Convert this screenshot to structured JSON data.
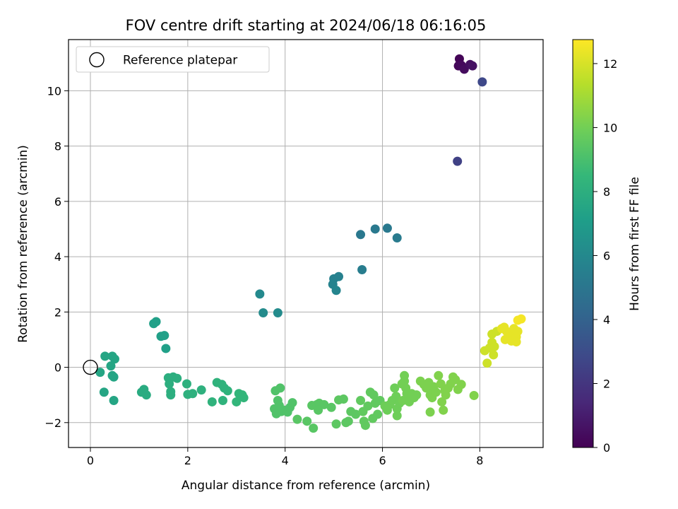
{
  "chart_data": {
    "type": "scatter",
    "title": "FOV centre drift starting at 2024/06/18 06:16:05",
    "xlabel": "Angular distance from reference (arcmin)",
    "ylabel": "Rotation from reference (arcmin)",
    "xlim": [
      -0.45,
      9.3
    ],
    "ylim": [
      -2.9,
      11.85
    ],
    "xticks": [
      0,
      2,
      4,
      6,
      8
    ],
    "yticks": [
      -2,
      0,
      2,
      4,
      6,
      8,
      10
    ],
    "grid": true,
    "legend": {
      "location": "top-left",
      "entries": [
        "Reference platepar"
      ]
    },
    "reference_point": {
      "x": 0,
      "y": 0
    },
    "colorbar": {
      "label": "Hours from first FF file",
      "colormap": "viridis",
      "range": [
        0,
        12.75
      ],
      "ticks": [
        0,
        2,
        4,
        6,
        8,
        10,
        12
      ]
    },
    "points": [
      {
        "x": 7.58,
        "y": 11.15,
        "c": 0.1
      },
      {
        "x": 7.56,
        "y": 10.9,
        "c": 0.2
      },
      {
        "x": 7.62,
        "y": 10.92,
        "c": 0.3
      },
      {
        "x": 7.68,
        "y": 10.78,
        "c": 0.4
      },
      {
        "x": 7.8,
        "y": 10.95,
        "c": 0.5
      },
      {
        "x": 7.85,
        "y": 10.9,
        "c": 0.6
      },
      {
        "x": 8.05,
        "y": 10.32,
        "c": 2.8
      },
      {
        "x": 7.54,
        "y": 7.45,
        "c": 2.5
      },
      {
        "x": 5.55,
        "y": 4.8,
        "c": 5.1
      },
      {
        "x": 5.85,
        "y": 5.0,
        "c": 5.2
      },
      {
        "x": 6.1,
        "y": 5.03,
        "c": 5.2
      },
      {
        "x": 6.3,
        "y": 4.68,
        "c": 5.3
      },
      {
        "x": 5.58,
        "y": 3.53,
        "c": 5.4
      },
      {
        "x": 5.0,
        "y": 3.2,
        "c": 5.6
      },
      {
        "x": 5.1,
        "y": 3.28,
        "c": 5.6
      },
      {
        "x": 4.98,
        "y": 3.0,
        "c": 5.7
      },
      {
        "x": 5.05,
        "y": 2.78,
        "c": 5.8
      },
      {
        "x": 3.48,
        "y": 2.65,
        "c": 6.0
      },
      {
        "x": 3.55,
        "y": 1.97,
        "c": 6.1
      },
      {
        "x": 3.85,
        "y": 1.97,
        "c": 6.1
      },
      {
        "x": 0.3,
        "y": 0.4,
        "c": 7.5
      },
      {
        "x": 0.45,
        "y": 0.4,
        "c": 7.5
      },
      {
        "x": 0.5,
        "y": 0.3,
        "c": 7.5
      },
      {
        "x": 0.42,
        "y": 0.05,
        "c": 7.5
      },
      {
        "x": 0.2,
        "y": -0.18,
        "c": 7.5
      },
      {
        "x": 0.48,
        "y": -0.35,
        "c": 7.5
      },
      {
        "x": 0.45,
        "y": -0.3,
        "c": 7.5
      },
      {
        "x": 0.28,
        "y": -0.9,
        "c": 7.5
      },
      {
        "x": 0.48,
        "y": -1.2,
        "c": 7.5
      },
      {
        "x": 1.3,
        "y": 1.58,
        "c": 7.2
      },
      {
        "x": 1.35,
        "y": 1.65,
        "c": 7.2
      },
      {
        "x": 1.45,
        "y": 1.12,
        "c": 7.2
      },
      {
        "x": 1.52,
        "y": 1.15,
        "c": 7.2
      },
      {
        "x": 1.55,
        "y": 0.68,
        "c": 7.2
      },
      {
        "x": 1.05,
        "y": -0.9,
        "c": 7.8
      },
      {
        "x": 1.1,
        "y": -0.8,
        "c": 7.8
      },
      {
        "x": 1.15,
        "y": -1.0,
        "c": 7.8
      },
      {
        "x": 1.6,
        "y": -0.38,
        "c": 8.0
      },
      {
        "x": 1.7,
        "y": -0.35,
        "c": 8.0
      },
      {
        "x": 1.78,
        "y": -0.4,
        "c": 8.0
      },
      {
        "x": 1.62,
        "y": -0.6,
        "c": 8.0
      },
      {
        "x": 1.65,
        "y": -0.88,
        "c": 8.0
      },
      {
        "x": 1.65,
        "y": -1.0,
        "c": 8.0
      },
      {
        "x": 1.98,
        "y": -0.6,
        "c": 8.1
      },
      {
        "x": 2.0,
        "y": -0.98,
        "c": 8.1
      },
      {
        "x": 2.1,
        "y": -0.95,
        "c": 8.1
      },
      {
        "x": 2.28,
        "y": -0.82,
        "c": 8.1
      },
      {
        "x": 2.5,
        "y": -1.25,
        "c": 8.2
      },
      {
        "x": 2.6,
        "y": -0.55,
        "c": 8.2
      },
      {
        "x": 2.7,
        "y": -0.62,
        "c": 8.2
      },
      {
        "x": 2.75,
        "y": -0.75,
        "c": 8.2
      },
      {
        "x": 2.82,
        "y": -0.85,
        "c": 8.2
      },
      {
        "x": 2.72,
        "y": -1.2,
        "c": 8.2
      },
      {
        "x": 3.0,
        "y": -1.25,
        "c": 8.4
      },
      {
        "x": 3.05,
        "y": -0.95,
        "c": 8.4
      },
      {
        "x": 3.12,
        "y": -1.0,
        "c": 8.4
      },
      {
        "x": 3.15,
        "y": -1.1,
        "c": 8.4
      },
      {
        "x": 3.8,
        "y": -0.85,
        "c": 9.2
      },
      {
        "x": 3.9,
        "y": -0.75,
        "c": 9.2
      },
      {
        "x": 3.85,
        "y": -1.2,
        "c": 9.2
      },
      {
        "x": 3.78,
        "y": -1.5,
        "c": 9.2
      },
      {
        "x": 3.82,
        "y": -1.68,
        "c": 9.2
      },
      {
        "x": 3.92,
        "y": -1.6,
        "c": 9.2
      },
      {
        "x": 3.98,
        "y": -1.55,
        "c": 9.2
      },
      {
        "x": 4.05,
        "y": -1.62,
        "c": 9.2
      },
      {
        "x": 4.1,
        "y": -1.45,
        "c": 9.2
      },
      {
        "x": 4.15,
        "y": -1.28,
        "c": 9.2
      },
      {
        "x": 3.88,
        "y": -1.38,
        "c": 9.2
      },
      {
        "x": 4.25,
        "y": -1.88,
        "c": 9.4
      },
      {
        "x": 4.45,
        "y": -1.95,
        "c": 9.4
      },
      {
        "x": 4.58,
        "y": -2.2,
        "c": 9.4
      },
      {
        "x": 4.55,
        "y": -1.38,
        "c": 9.4
      },
      {
        "x": 4.65,
        "y": -1.35,
        "c": 9.4
      },
      {
        "x": 4.7,
        "y": -1.3,
        "c": 9.4
      },
      {
        "x": 4.8,
        "y": -1.35,
        "c": 9.4
      },
      {
        "x": 4.68,
        "y": -1.55,
        "c": 9.4
      },
      {
        "x": 4.95,
        "y": -1.45,
        "c": 9.4
      },
      {
        "x": 5.05,
        "y": -2.05,
        "c": 9.5
      },
      {
        "x": 5.1,
        "y": -1.18,
        "c": 9.5
      },
      {
        "x": 5.2,
        "y": -1.15,
        "c": 9.5
      },
      {
        "x": 5.25,
        "y": -2.0,
        "c": 9.5
      },
      {
        "x": 5.3,
        "y": -1.95,
        "c": 9.5
      },
      {
        "x": 5.35,
        "y": -1.6,
        "c": 9.5
      },
      {
        "x": 5.45,
        "y": -1.7,
        "c": 9.5
      },
      {
        "x": 5.55,
        "y": -1.2,
        "c": 9.6
      },
      {
        "x": 5.6,
        "y": -1.6,
        "c": 9.6
      },
      {
        "x": 5.62,
        "y": -1.95,
        "c": 9.6
      },
      {
        "x": 5.65,
        "y": -2.1,
        "c": 9.6
      },
      {
        "x": 5.7,
        "y": -1.4,
        "c": 9.6
      },
      {
        "x": 5.75,
        "y": -0.9,
        "c": 9.6
      },
      {
        "x": 5.82,
        "y": -1.0,
        "c": 9.6
      },
      {
        "x": 5.85,
        "y": -1.3,
        "c": 9.6
      },
      {
        "x": 5.8,
        "y": -1.85,
        "c": 9.6
      },
      {
        "x": 5.9,
        "y": -1.7,
        "c": 9.6
      },
      {
        "x": 5.95,
        "y": -1.2,
        "c": 9.6
      },
      {
        "x": 6.05,
        "y": -1.4,
        "c": 9.9
      },
      {
        "x": 6.1,
        "y": -1.55,
        "c": 9.9
      },
      {
        "x": 6.15,
        "y": -1.35,
        "c": 9.9
      },
      {
        "x": 6.2,
        "y": -1.2,
        "c": 9.9
      },
      {
        "x": 6.25,
        "y": -0.75,
        "c": 9.9
      },
      {
        "x": 6.28,
        "y": -1.05,
        "c": 9.9
      },
      {
        "x": 6.3,
        "y": -1.5,
        "c": 9.9
      },
      {
        "x": 6.3,
        "y": -1.75,
        "c": 9.9
      },
      {
        "x": 6.35,
        "y": -1.3,
        "c": 9.9
      },
      {
        "x": 6.4,
        "y": -0.6,
        "c": 10.0
      },
      {
        "x": 6.45,
        "y": -0.3,
        "c": 10.0
      },
      {
        "x": 6.45,
        "y": -0.5,
        "c": 10.0
      },
      {
        "x": 6.42,
        "y": -1.2,
        "c": 10.0
      },
      {
        "x": 6.48,
        "y": -0.75,
        "c": 10.0
      },
      {
        "x": 6.5,
        "y": -0.95,
        "c": 10.0
      },
      {
        "x": 6.55,
        "y": -1.05,
        "c": 10.0
      },
      {
        "x": 6.6,
        "y": -0.95,
        "c": 10.0
      },
      {
        "x": 6.65,
        "y": -1.1,
        "c": 10.0
      },
      {
        "x": 6.7,
        "y": -1.0,
        "c": 10.0
      },
      {
        "x": 6.55,
        "y": -1.25,
        "c": 10.0
      },
      {
        "x": 6.78,
        "y": -0.5,
        "c": 10.2
      },
      {
        "x": 6.85,
        "y": -0.62,
        "c": 10.2
      },
      {
        "x": 6.9,
        "y": -0.75,
        "c": 10.2
      },
      {
        "x": 6.95,
        "y": -0.55,
        "c": 10.2
      },
      {
        "x": 6.98,
        "y": -1.0,
        "c": 10.2
      },
      {
        "x": 7.0,
        "y": -0.85,
        "c": 10.2
      },
      {
        "x": 7.02,
        "y": -1.1,
        "c": 10.2
      },
      {
        "x": 6.98,
        "y": -1.62,
        "c": 10.2
      },
      {
        "x": 7.05,
        "y": -0.7,
        "c": 10.2
      },
      {
        "x": 7.1,
        "y": -0.9,
        "c": 10.2
      },
      {
        "x": 7.15,
        "y": -0.3,
        "c": 10.3
      },
      {
        "x": 7.2,
        "y": -0.6,
        "c": 10.3
      },
      {
        "x": 7.22,
        "y": -1.25,
        "c": 10.3
      },
      {
        "x": 7.25,
        "y": -1.55,
        "c": 10.3
      },
      {
        "x": 7.28,
        "y": -0.85,
        "c": 10.3
      },
      {
        "x": 7.3,
        "y": -1.0,
        "c": 10.3
      },
      {
        "x": 7.35,
        "y": -0.75,
        "c": 10.3
      },
      {
        "x": 7.4,
        "y": -0.6,
        "c": 10.3
      },
      {
        "x": 7.45,
        "y": -0.35,
        "c": 10.3
      },
      {
        "x": 7.5,
        "y": -0.45,
        "c": 10.3
      },
      {
        "x": 7.55,
        "y": -0.8,
        "c": 10.3
      },
      {
        "x": 7.62,
        "y": -0.62,
        "c": 10.3
      },
      {
        "x": 7.88,
        "y": -1.02,
        "c": 10.3
      },
      {
        "x": 8.1,
        "y": 0.6,
        "c": 11.8
      },
      {
        "x": 8.15,
        "y": 0.15,
        "c": 11.8
      },
      {
        "x": 8.2,
        "y": 0.7,
        "c": 11.8
      },
      {
        "x": 8.25,
        "y": 0.9,
        "c": 11.8
      },
      {
        "x": 8.28,
        "y": 0.45,
        "c": 11.8
      },
      {
        "x": 8.25,
        "y": 1.2,
        "c": 11.8
      },
      {
        "x": 8.3,
        "y": 0.75,
        "c": 11.8
      },
      {
        "x": 8.35,
        "y": 1.3,
        "c": 11.8
      },
      {
        "x": 8.45,
        "y": 1.4,
        "c": 12.3
      },
      {
        "x": 8.5,
        "y": 1.45,
        "c": 12.3
      },
      {
        "x": 8.55,
        "y": 1.3,
        "c": 12.3
      },
      {
        "x": 8.52,
        "y": 1.0,
        "c": 12.3
      },
      {
        "x": 8.6,
        "y": 1.25,
        "c": 12.3
      },
      {
        "x": 8.62,
        "y": 1.1,
        "c": 12.3
      },
      {
        "x": 8.65,
        "y": 0.95,
        "c": 12.3
      },
      {
        "x": 8.7,
        "y": 1.2,
        "c": 12.3
      },
      {
        "x": 8.7,
        "y": 1.4,
        "c": 12.3
      },
      {
        "x": 8.75,
        "y": 1.1,
        "c": 12.3
      },
      {
        "x": 8.78,
        "y": 1.3,
        "c": 12.3
      },
      {
        "x": 8.75,
        "y": 0.92,
        "c": 12.3
      },
      {
        "x": 8.78,
        "y": 1.7,
        "c": 12.6
      },
      {
        "x": 8.85,
        "y": 1.75,
        "c": 12.6
      }
    ]
  }
}
